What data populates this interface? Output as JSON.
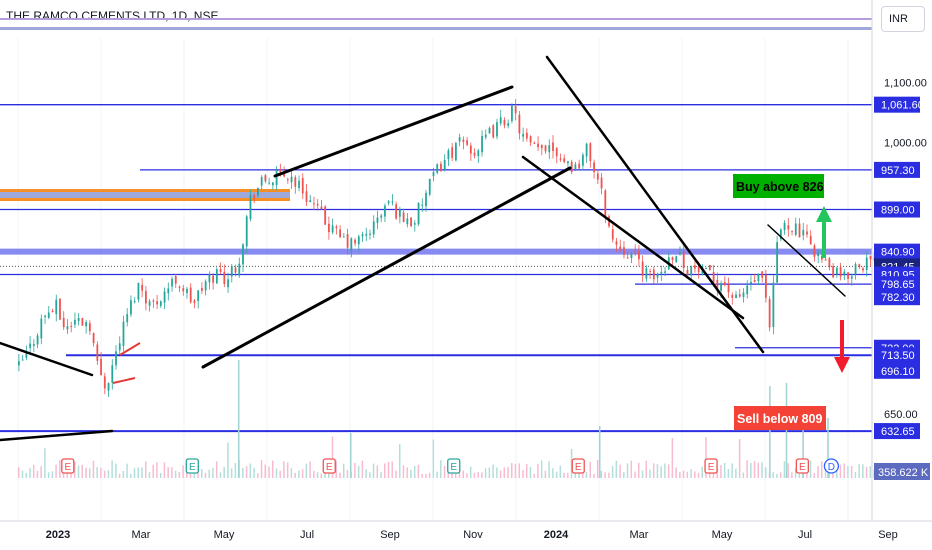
{
  "header": {
    "title": "THE RAMCO CEMENTS LTD, 1D, NSE",
    "currency": "INR"
  },
  "colors": {
    "up": "#26a69a",
    "down": "#ef5350",
    "level": "#2a2ee0",
    "orange_zone": "#f57c00",
    "trend": "#000000",
    "buy": "#00b000",
    "sell": "#f44336",
    "grid": "#f0f3fa"
  },
  "chart_data": {
    "type": "candlestick",
    "x_axis": {
      "tick_labels": [
        "2023",
        "Mar",
        "May",
        "Jul",
        "Sep",
        "Nov",
        "2024",
        "Mar",
        "May",
        "Jul",
        "Sep"
      ],
      "bold_labels": [
        "2023",
        "2024"
      ]
    },
    "y_axis": {
      "scale": "log",
      "range": [
        612,
        1180
      ],
      "tick_labels": [
        {
          "value": 1100,
          "label": "1,100.00"
        },
        {
          "value": 1000,
          "label": "1,000.00"
        },
        {
          "value": 650,
          "label": "650.00"
        }
      ]
    },
    "price_levels": [
      {
        "value": 1061.6,
        "label": "1,061.60"
      },
      {
        "value": 957.3,
        "label": "957.30"
      },
      {
        "value": 899.0,
        "label": "899.00"
      },
      {
        "value": 840.9,
        "label": "840.90"
      },
      {
        "value": 821.45,
        "label": "821.45",
        "style": "current"
      },
      {
        "value": 810.95,
        "label": "810.95"
      },
      {
        "value": 798.65,
        "label": "798.65"
      },
      {
        "value": 782.3,
        "label": "782.30"
      },
      {
        "value": 722.0,
        "label": "722.00"
      },
      {
        "value": 713.5,
        "label": "713.50"
      },
      {
        "value": 696.1,
        "label": "696.10"
      },
      {
        "value": 632.65,
        "label": "632.65"
      }
    ],
    "volume_label": "358.622 K",
    "annotations": [
      {
        "text": "Buy above 826",
        "color": "buy",
        "arrow": "up"
      },
      {
        "text": "Sell below 809",
        "color": "sell",
        "arrow": "down"
      }
    ],
    "events": [
      {
        "month_index": 1.2,
        "type": "E"
      },
      {
        "month_index": 4.2,
        "type": "E",
        "color": "up"
      },
      {
        "month_index": 7.5,
        "type": "E"
      },
      {
        "month_index": 10.5,
        "type": "E",
        "color": "up"
      },
      {
        "month_index": 13.5,
        "type": "E"
      },
      {
        "month_index": 16.7,
        "type": "E"
      },
      {
        "month_index": 18.9,
        "type": "E"
      },
      {
        "month_index": 19.6,
        "type": "D"
      }
    ],
    "price_path": [
      [
        0.0,
        700
      ],
      [
        0.3,
        725
      ],
      [
        0.6,
        760
      ],
      [
        0.9,
        770
      ],
      [
        1.1,
        745
      ],
      [
        1.4,
        755
      ],
      [
        1.7,
        752
      ],
      [
        1.9,
        700
      ],
      [
        2.1,
        680
      ],
      [
        2.3,
        710
      ],
      [
        2.6,
        760
      ],
      [
        2.9,
        800
      ],
      [
        3.2,
        770
      ],
      [
        3.5,
        790
      ],
      [
        3.8,
        805
      ],
      [
        4.0,
        790
      ],
      [
        4.2,
        775
      ],
      [
        4.5,
        800
      ],
      [
        4.8,
        815
      ],
      [
        5.0,
        805
      ],
      [
        5.3,
        830
      ],
      [
        5.6,
        920
      ],
      [
        5.9,
        940
      ],
      [
        6.2,
        945
      ],
      [
        6.5,
        950
      ],
      [
        6.8,
        930
      ],
      [
        7.1,
        905
      ],
      [
        7.4,
        880
      ],
      [
        7.7,
        860
      ],
      [
        8.0,
        850
      ],
      [
        8.3,
        860
      ],
      [
        8.6,
        880
      ],
      [
        8.9,
        910
      ],
      [
        9.2,
        890
      ],
      [
        9.5,
        880
      ],
      [
        9.8,
        920
      ],
      [
        10.1,
        960
      ],
      [
        10.4,
        985
      ],
      [
        10.7,
        1000
      ],
      [
        11.0,
        985
      ],
      [
        11.3,
        1010
      ],
      [
        11.6,
        1030
      ],
      [
        11.9,
        1050
      ],
      [
        12.2,
        1000
      ],
      [
        12.5,
        985
      ],
      [
        12.8,
        1000
      ],
      [
        13.1,
        975
      ],
      [
        13.4,
        960
      ],
      [
        13.7,
        990
      ],
      [
        14.0,
        930
      ],
      [
        14.3,
        855
      ],
      [
        14.6,
        845
      ],
      [
        14.9,
        830
      ],
      [
        15.2,
        805
      ],
      [
        15.5,
        815
      ],
      [
        15.8,
        845
      ],
      [
        16.1,
        820
      ],
      [
        16.4,
        815
      ],
      [
        16.7,
        805
      ],
      [
        17.0,
        800
      ],
      [
        17.3,
        775
      ],
      [
        17.6,
        800
      ],
      [
        17.9,
        805
      ],
      [
        18.1,
        740
      ],
      [
        18.3,
        870
      ],
      [
        18.6,
        880
      ],
      [
        18.9,
        860
      ],
      [
        19.1,
        850
      ],
      [
        19.4,
        825
      ],
      [
        19.7,
        810
      ],
      [
        19.9,
        805
      ],
      [
        20.2,
        825
      ],
      [
        20.5,
        828
      ],
      [
        20.7,
        821
      ]
    ]
  }
}
